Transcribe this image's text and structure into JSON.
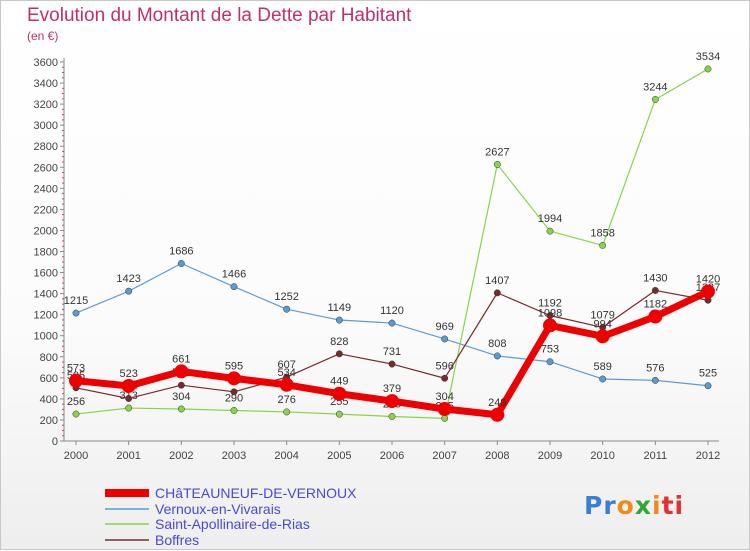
{
  "title": "Evolution du Montant de la Dette par Habitant",
  "subtitle": "(en €)",
  "logo": {
    "text": "Proxiti",
    "colors": [
      "#3a7fd0",
      "#3a7fd0",
      "#f08a1c",
      "#30a830",
      "#f08a1c",
      "#e03030",
      "#e03030"
    ]
  },
  "chart_data": {
    "type": "line",
    "x": [
      "2000",
      "2001",
      "2002",
      "2003",
      "2004",
      "2005",
      "2006",
      "2007",
      "2008",
      "2009",
      "2010",
      "2011",
      "2012"
    ],
    "ylim": [
      0,
      3600
    ],
    "yticks": [
      0,
      200,
      400,
      600,
      800,
      1000,
      1200,
      1400,
      1600,
      1800,
      2000,
      2200,
      2400,
      2600,
      2800,
      3000,
      3200,
      3400,
      3600
    ],
    "grid": false,
    "legend_position": "bottom-left",
    "series": [
      {
        "name": "Vernoux-en-Vivarais",
        "color": "#5b9bd5",
        "width": 1.2,
        "values": [
          1215,
          1423,
          1686,
          1466,
          1252,
          1149,
          1120,
          969,
          808,
          753,
          589,
          576,
          525
        ],
        "labels": [
          "1215",
          "1423",
          "1686",
          "1466",
          "1252",
          "1149",
          "1120",
          "969",
          "808",
          "753",
          "589",
          "576",
          "525"
        ],
        "label_side": "above"
      },
      {
        "name": "Saint-Apollinaire-de-Rias",
        "color": "#88d448",
        "width": 1.2,
        "values": [
          256,
          313,
          304,
          290,
          276,
          255,
          233,
          215,
          2627,
          1994,
          1858,
          3244,
          3534
        ],
        "labels": [
          "256",
          "313",
          "304",
          "290",
          "276",
          "255",
          "233",
          "215",
          "2627",
          "1994",
          "1858",
          "3244",
          "3534"
        ],
        "label_side": "above"
      },
      {
        "name": "Boffres",
        "color": "#7a2a2a",
        "width": 1.2,
        "values": [
          505,
          404,
          530,
          467,
          607,
          828,
          731,
          596,
          1407,
          1192,
          1079,
          1430,
          1337
        ],
        "labels": [
          "505",
          "404",
          "530",
          "467",
          "607",
          "828",
          "731",
          "596",
          "1407",
          "1192",
          "1079",
          "1430",
          "1337"
        ],
        "label_side": "above"
      },
      {
        "name": "CHâTEAUNEUF-DE-VERNOUX",
        "color": "#ee0000",
        "width": 7,
        "values": [
          573,
          523,
          661,
          595,
          534,
          449,
          379,
          304,
          249,
          1098,
          994,
          1182,
          1420
        ],
        "labels": [
          "573",
          "523",
          "661",
          "595",
          "534",
          "449",
          "379",
          "304",
          "249",
          "1098",
          "994",
          "1182",
          "1420"
        ],
        "label_side": "above"
      }
    ],
    "legend": [
      "CHâTEAUNEUF-DE-VERNOUX",
      "Vernoux-en-Vivarais",
      "Saint-Apollinaire-de-Rias",
      "Boffres"
    ]
  }
}
